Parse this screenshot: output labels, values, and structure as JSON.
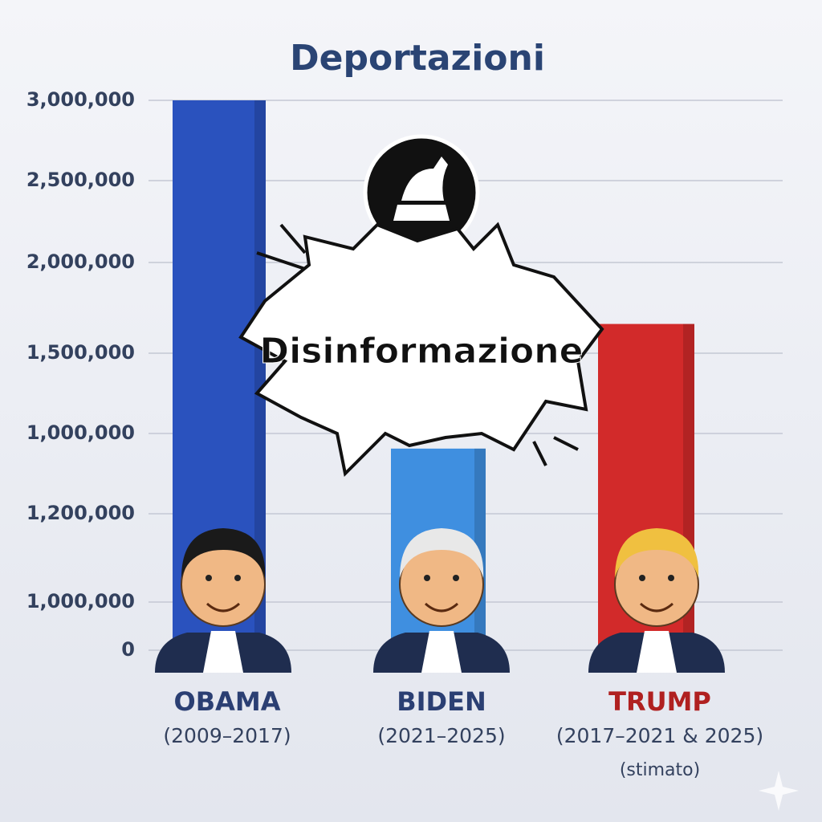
{
  "chart_data": {
    "type": "bar",
    "title": "Deportazioni",
    "annotation": "Disinformazione",
    "categories": [
      "OBAMA",
      "BIDEN",
      "TRUMP"
    ],
    "periods": [
      "(2009–2017)",
      "(2021–2025)",
      "(2017–2021 & 2025)"
    ],
    "notes": [
      null,
      null,
      "(stimato)"
    ],
    "values": [
      3000000,
      1100000,
      1780000
    ],
    "colors": [
      "#2a52be",
      "#3f8fe0",
      "#d22a2a"
    ],
    "label_colors": [
      "#2b3f73",
      "#2b3f73",
      "#b02020"
    ],
    "ylim": [
      0,
      3000000
    ],
    "yticks": [
      0,
      {
        "value": 1000000,
        "label": "1,000,000"
      },
      {
        "value": 1200000,
        "label": "1,200,000"
      },
      {
        "value": 1000000,
        "label": "1,000,000"
      },
      {
        "value": 1500000,
        "label": "1,500,000"
      },
      {
        "value": 2000000,
        "label": "2,000,000"
      },
      {
        "value": 2500000,
        "label": "2,500,000"
      },
      {
        "value": 3000000,
        "label": "3,000,000"
      }
    ],
    "grid": true
  }
}
